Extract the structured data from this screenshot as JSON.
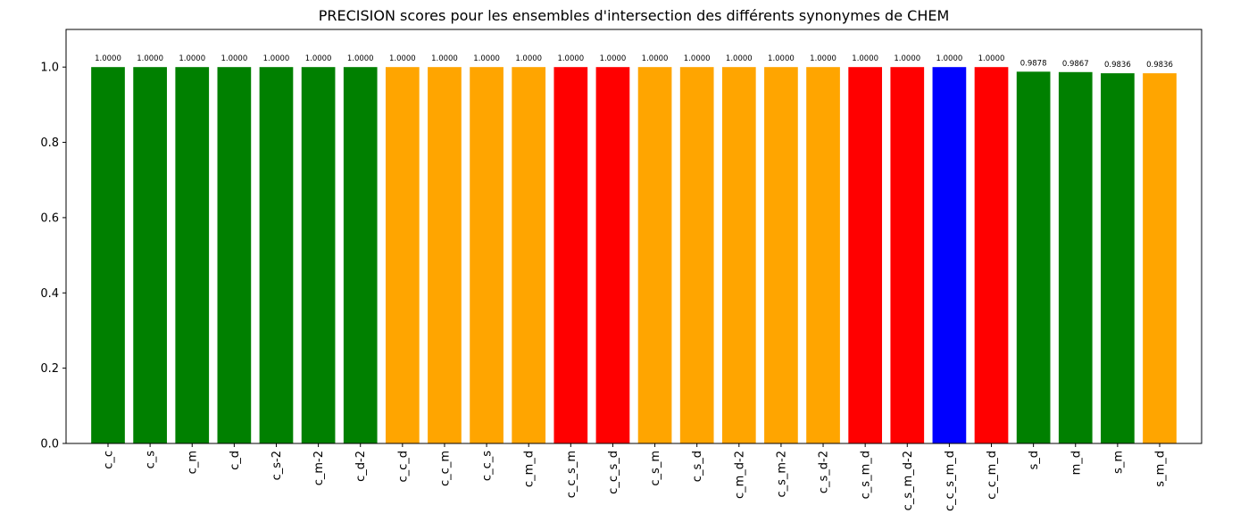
{
  "chart_data": {
    "type": "bar",
    "title": "PRECISION scores pour les ensembles d'intersection des différents synonymes de CHEM",
    "xlabel": "",
    "ylabel": "",
    "ylim": [
      0,
      1.1
    ],
    "yticks": [
      "0.0",
      "0.2",
      "0.4",
      "0.6",
      "0.8",
      "1.0"
    ],
    "grid": false,
    "legend": "none",
    "categories": [
      "c_c",
      "c_s",
      "c_m",
      "c_d",
      "c_s-2",
      "c_m-2",
      "c_d-2",
      "c_c_d",
      "c_c_m",
      "c_c_s",
      "c_m_d",
      "c_c_s_m",
      "c_c_s_d",
      "c_s_m",
      "c_s_d",
      "c_m_d-2",
      "c_s_m-2",
      "c_s_d-2",
      "c_s_m_d",
      "c_s_m_d-2",
      "c_c_s_m_d",
      "c_c_m_d",
      "s_d",
      "m_d",
      "s_m",
      "s_m_d"
    ],
    "values": [
      1.0,
      1.0,
      1.0,
      1.0,
      1.0,
      1.0,
      1.0,
      1.0,
      1.0,
      1.0,
      1.0,
      1.0,
      1.0,
      1.0,
      1.0,
      1.0,
      1.0,
      1.0,
      1.0,
      1.0,
      1.0,
      1.0,
      0.9878,
      0.9867,
      0.9836,
      0.9836
    ],
    "value_labels": [
      "1.0000",
      "1.0000",
      "1.0000",
      "1.0000",
      "1.0000",
      "1.0000",
      "1.0000",
      "1.0000",
      "1.0000",
      "1.0000",
      "1.0000",
      "1.0000",
      "1.0000",
      "1.0000",
      "1.0000",
      "1.0000",
      "1.0000",
      "1.0000",
      "1.0000",
      "1.0000",
      "1.0000",
      "1.0000",
      "0.9878",
      "0.9867",
      "0.9836",
      "0.9836"
    ],
    "bar_colors": [
      "#008000",
      "#008000",
      "#008000",
      "#008000",
      "#008000",
      "#008000",
      "#008000",
      "#ffa500",
      "#ffa500",
      "#ffa500",
      "#ffa500",
      "#ff0000",
      "#ff0000",
      "#ffa500",
      "#ffa500",
      "#ffa500",
      "#ffa500",
      "#ffa500",
      "#ff0000",
      "#ff0000",
      "#0000ff",
      "#ff0000",
      "#008000",
      "#008000",
      "#008000",
      "#ffa500"
    ]
  }
}
